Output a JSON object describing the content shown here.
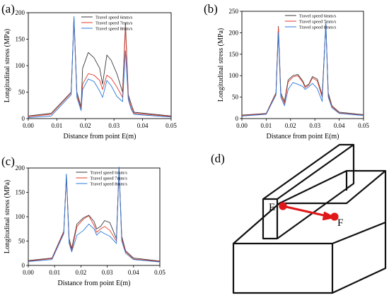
{
  "panels": {
    "a": {
      "label": "(a)"
    },
    "b": {
      "label": "(b)"
    },
    "c": {
      "label": "(c)"
    },
    "d": {
      "label": "(d)",
      "point_e": "E",
      "point_f": "F"
    }
  },
  "colors": {
    "series_6": "#3a3a3a",
    "series_7": "#e03a2a",
    "series_8": "#2a78d8",
    "arrow": "#e01818",
    "box_stroke": "#111111"
  },
  "chart_data": [
    {
      "id": "a",
      "type": "line",
      "xlabel": "Distance from point E(m)",
      "ylabel": "Longitudinal stress (MPa)",
      "xlim": [
        0.0,
        0.05
      ],
      "ylim": [
        0,
        200
      ],
      "xticks": [
        "0.00",
        "0.01",
        "0.02",
        "0.03",
        "0.04",
        "0.05"
      ],
      "yticks": [
        "0",
        "50",
        "100",
        "150",
        "200"
      ],
      "legend_position": "top-center",
      "series": [
        {
          "name": "Travel speed 6mm/s",
          "x": [
            0,
            0.008,
            0.015,
            0.016,
            0.017,
            0.0185,
            0.019,
            0.021,
            0.023,
            0.025,
            0.026,
            0.0275,
            0.029,
            0.031,
            0.033,
            0.034,
            0.035,
            0.036,
            0.037,
            0.05
          ],
          "y": [
            5,
            10,
            50,
            190,
            50,
            22,
            95,
            125,
            115,
            95,
            65,
            120,
            110,
            85,
            50,
            180,
            45,
            28,
            12,
            5
          ]
        },
        {
          "name": "Travel speed 7mm/s",
          "x": [
            0,
            0.008,
            0.015,
            0.016,
            0.017,
            0.0185,
            0.019,
            0.021,
            0.023,
            0.025,
            0.026,
            0.0275,
            0.029,
            0.031,
            0.033,
            0.034,
            0.035,
            0.036,
            0.037,
            0.05
          ],
          "y": [
            4,
            8,
            48,
            188,
            45,
            18,
            65,
            85,
            82,
            72,
            55,
            82,
            76,
            60,
            40,
            175,
            40,
            22,
            10,
            4
          ]
        },
        {
          "name": "Travel speed 8mm/s",
          "x": [
            0,
            0.008,
            0.015,
            0.016,
            0.017,
            0.0185,
            0.019,
            0.021,
            0.023,
            0.025,
            0.026,
            0.0275,
            0.029,
            0.031,
            0.033,
            0.034,
            0.035,
            0.036,
            0.037,
            0.05
          ],
          "y": [
            2,
            5,
            45,
            193,
            40,
            15,
            55,
            75,
            70,
            52,
            40,
            72,
            62,
            42,
            32,
            128,
            36,
            18,
            8,
            3
          ]
        }
      ]
    },
    {
      "id": "b",
      "type": "line",
      "xlabel": "Distance from point E(m)",
      "ylabel": "Longitudinal stress (MPa)",
      "xlim": [
        0.0,
        0.05
      ],
      "ylim": [
        0,
        250
      ],
      "xticks": [
        "0.00",
        "0.01",
        "0.02",
        "0.03",
        "0.04",
        "0.05"
      ],
      "yticks": [
        "0",
        "50",
        "100",
        "150",
        "200",
        "250"
      ],
      "legend_position": "top-center",
      "series": [
        {
          "name": "Travel speed 6mm/s",
          "x": [
            0,
            0.01,
            0.014,
            0.015,
            0.016,
            0.0175,
            0.019,
            0.021,
            0.023,
            0.025,
            0.026,
            0.0275,
            0.029,
            0.031,
            0.033,
            0.0345,
            0.0355,
            0.037,
            0.04,
            0.05
          ],
          "y": [
            8,
            12,
            60,
            215,
            60,
            40,
            90,
            100,
            103,
            88,
            75,
            80,
            98,
            92,
            55,
            220,
            60,
            30,
            15,
            9
          ]
        },
        {
          "name": "Travel speed 7mm/s",
          "x": [
            0,
            0.01,
            0.014,
            0.015,
            0.016,
            0.0175,
            0.019,
            0.021,
            0.023,
            0.025,
            0.026,
            0.0275,
            0.029,
            0.031,
            0.033,
            0.0345,
            0.0355,
            0.037,
            0.04,
            0.05
          ],
          "y": [
            7,
            11,
            58,
            212,
            55,
            35,
            85,
            97,
            100,
            85,
            72,
            78,
            95,
            88,
            50,
            218,
            55,
            28,
            13,
            8
          ]
        },
        {
          "name": "Travel speed 8mm/s",
          "x": [
            0,
            0.01,
            0.014,
            0.015,
            0.016,
            0.0175,
            0.019,
            0.021,
            0.023,
            0.025,
            0.026,
            0.0275,
            0.029,
            0.031,
            0.033,
            0.0345,
            0.0355,
            0.037,
            0.04,
            0.05
          ],
          "y": [
            6,
            10,
            55,
            200,
            50,
            30,
            68,
            84,
            80,
            75,
            68,
            74,
            82,
            70,
            40,
            225,
            50,
            25,
            12,
            7
          ]
        }
      ]
    },
    {
      "id": "c",
      "type": "line",
      "xlabel": "Distance from point E(m)",
      "ylabel": "Longitudinal stress (MPa)",
      "xlim": [
        0.0,
        0.05
      ],
      "ylim": [
        0,
        200
      ],
      "xticks": [
        "0.00",
        "0.01",
        "0.02",
        "0.03",
        "0.04",
        "0.05"
      ],
      "yticks": [
        "0",
        "50",
        "100",
        "150",
        "200"
      ],
      "legend_position": "top-center",
      "series": [
        {
          "name": "Travel speed 6mm/s",
          "x": [
            0,
            0.009,
            0.0135,
            0.0145,
            0.0155,
            0.0165,
            0.0185,
            0.021,
            0.023,
            0.025,
            0.026,
            0.0275,
            0.029,
            0.031,
            0.0335,
            0.0345,
            0.0355,
            0.037,
            0.04,
            0.05
          ],
          "y": [
            10,
            15,
            70,
            185,
            55,
            35,
            85,
            98,
            103,
            90,
            75,
            80,
            92,
            88,
            55,
            200,
            60,
            30,
            15,
            9
          ]
        },
        {
          "name": "Travel speed 7mm/s",
          "x": [
            0,
            0.009,
            0.0135,
            0.0145,
            0.0155,
            0.0165,
            0.0185,
            0.021,
            0.023,
            0.025,
            0.026,
            0.0275,
            0.029,
            0.031,
            0.0335,
            0.0345,
            0.0355,
            0.037,
            0.04,
            0.05
          ],
          "y": [
            9,
            14,
            68,
            183,
            50,
            30,
            80,
            95,
            102,
            82,
            68,
            75,
            80,
            72,
            50,
            198,
            55,
            28,
            13,
            8
          ]
        },
        {
          "name": "Travel speed 8mm/s",
          "x": [
            0,
            0.009,
            0.0135,
            0.0145,
            0.0155,
            0.0165,
            0.0185,
            0.021,
            0.023,
            0.025,
            0.026,
            0.0275,
            0.029,
            0.031,
            0.0335,
            0.0345,
            0.0355,
            0.037,
            0.04,
            0.05
          ],
          "y": [
            8,
            12,
            65,
            188,
            45,
            28,
            62,
            72,
            85,
            75,
            62,
            70,
            65,
            60,
            45,
            202,
            50,
            25,
            12,
            7
          ]
        }
      ]
    }
  ]
}
